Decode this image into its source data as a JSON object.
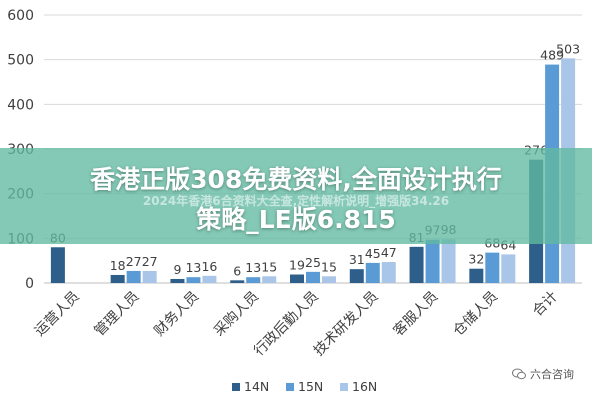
{
  "chart_data": {
    "type": "bar",
    "categories": [
      "运营人员",
      "管理人员",
      "财务人员",
      "采购人员",
      "行政后勤人员",
      "技术研发人员",
      "客服人员",
      "仓储人员",
      "合计"
    ],
    "series": [
      {
        "name": "14N",
        "color": "#2e5f8a",
        "values": [
          80,
          18,
          9,
          6,
          19,
          31,
          81,
          32,
          276
        ]
      },
      {
        "name": "15N",
        "color": "#5b9bd5",
        "values": [
          null,
          27,
          13,
          13,
          25,
          45,
          97,
          68,
          489
        ]
      },
      {
        "name": "16N",
        "color": "#a9c5e8",
        "values": [
          null,
          27,
          16,
          15,
          15,
          47,
          98,
          64,
          503
        ]
      }
    ],
    "ylim": [
      0,
      600
    ],
    "yticks": [
      0,
      100,
      200,
      300,
      400,
      500,
      600
    ],
    "grid": true,
    "legend_position": "bottom"
  },
  "overlay": {
    "title_line1": "香港正版308免费资料,全面设计执行",
    "title_line2": "策略_LE版6.815",
    "subtitle": "2024年香港6合资料大全查,定性解析说明_增强版34.26"
  },
  "watermark": {
    "text": "六合咨询",
    "icon": "wechat-icon"
  }
}
